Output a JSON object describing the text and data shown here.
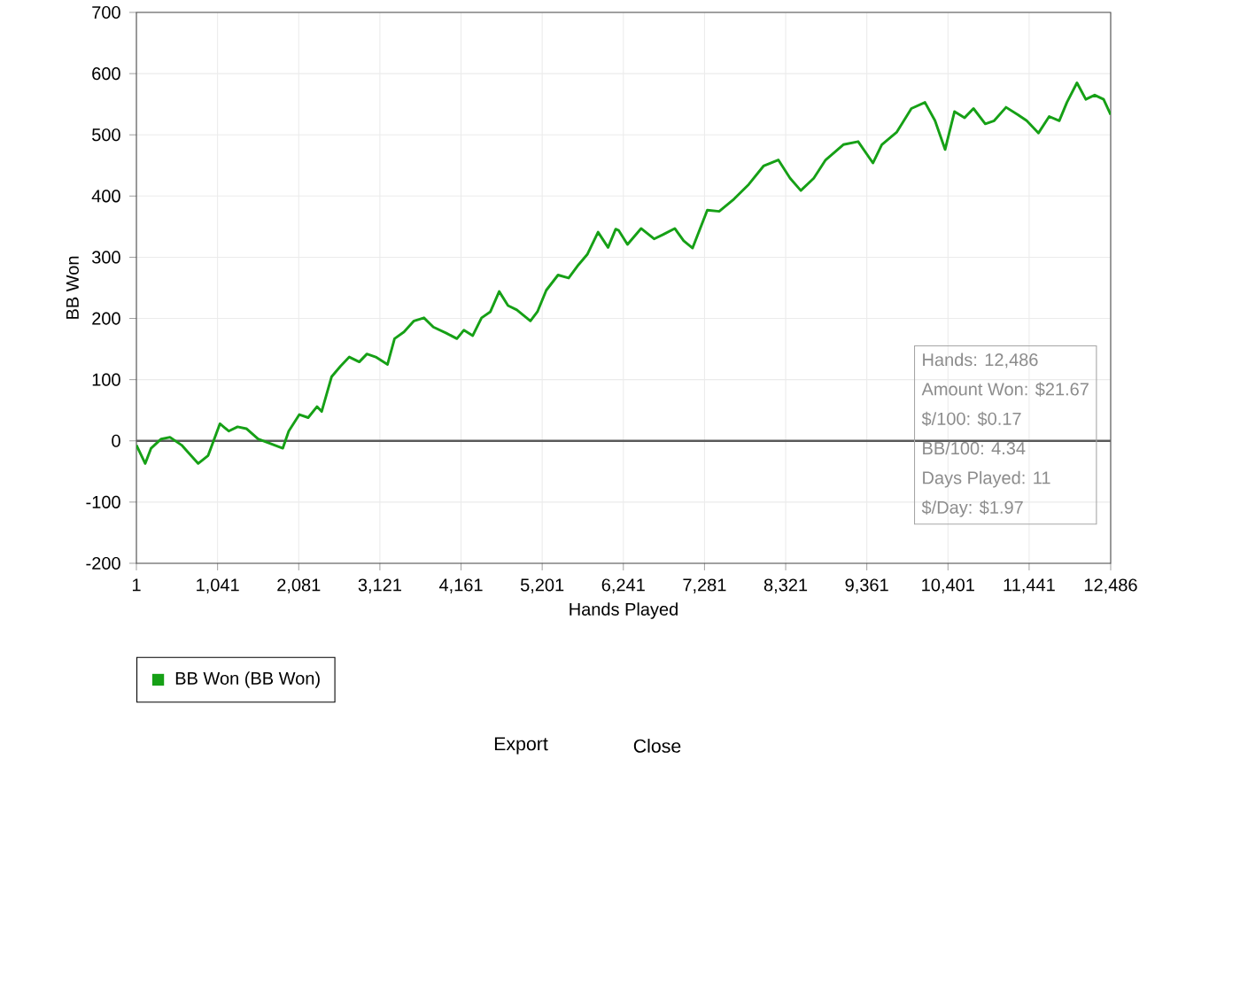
{
  "chart_data": {
    "type": "line",
    "xlabel": "Hands Played",
    "ylabel": "BB Won",
    "x": [
      1,
      114,
      189,
      318,
      431,
      581,
      792,
      920,
      1071,
      1184,
      1297,
      1410,
      1561,
      1712,
      1877,
      1953,
      2089,
      2202,
      2315,
      2375,
      2503,
      2616,
      2729,
      2857,
      2955,
      3068,
      3219,
      3309,
      3430,
      3558,
      3686,
      3806,
      3972,
      4108,
      4198,
      4311,
      4424,
      4537,
      4650,
      4763,
      4876,
      5050,
      5140,
      5253,
      5404,
      5540,
      5668,
      5781,
      5917,
      6045,
      6143,
      6180,
      6294,
      6468,
      6635,
      6749,
      6900,
      7014,
      7128,
      7317,
      7469,
      7658,
      7848,
      8037,
      8227,
      8378,
      8515,
      8681,
      8833,
      9060,
      9250,
      9439,
      9553,
      9742,
      9932,
      10106,
      10235,
      10364,
      10485,
      10614,
      10728,
      10879,
      10993,
      11145,
      11296,
      11410,
      11561,
      11698,
      11827,
      11925,
      12054,
      12167,
      12281,
      12395,
      12486
    ],
    "series": [
      {
        "name": "BB Won (BB Won)",
        "color": "#16a016",
        "values": [
          -7,
          -37,
          -12,
          3,
          6,
          -7,
          -37,
          -24,
          28,
          16,
          23,
          20,
          3,
          -4,
          -12,
          16,
          43,
          38,
          56,
          48,
          105,
          122,
          137,
          129,
          142,
          137,
          125,
          167,
          178,
          196,
          201,
          186,
          176,
          167,
          181,
          172,
          201,
          211,
          244,
          221,
          214,
          196,
          211,
          246,
          271,
          266,
          288,
          305,
          341,
          316,
          346,
          344,
          321,
          347,
          330,
          337,
          347,
          327,
          315,
          377,
          375,
          395,
          419,
          449,
          459,
          429,
          409,
          429,
          459,
          484,
          489,
          454,
          484,
          504,
          543,
          553,
          523,
          476,
          538,
          528,
          543,
          518,
          523,
          545,
          533,
          523,
          503,
          530,
          523,
          553,
          585,
          558,
          565,
          558,
          533
        ]
      }
    ],
    "xlim": [
      1,
      12486
    ],
    "xticks": [
      1,
      {
        "value": 1041,
        "label": "1,041"
      },
      {
        "value": 2081,
        "label": "2,081"
      },
      {
        "value": 3121,
        "label": "3,121"
      },
      {
        "value": 4161,
        "label": "4,161"
      },
      {
        "value": 5201,
        "label": "5,201"
      },
      {
        "value": 6241,
        "label": "6,241"
      },
      {
        "value": 7281,
        "label": "7,281"
      },
      {
        "value": 8321,
        "label": "8,321"
      },
      {
        "value": 9361,
        "label": "9,361"
      },
      {
        "value": 10401,
        "label": "10,401"
      },
      {
        "value": 11441,
        "label": "11,441"
      },
      {
        "value": 12486,
        "label": "12,486"
      }
    ],
    "ylim": [
      -200,
      700
    ],
    "yticks": [
      -200,
      -100,
      0,
      100,
      200,
      300,
      400,
      500,
      600,
      700
    ],
    "grid": true,
    "legend": "bottom left",
    "ref_lines": [
      {
        "axis": "y",
        "value": 0,
        "color": "#5a5a5a"
      }
    ],
    "annotations": [
      "Hands: 12,486",
      "Amount Won: $21.67",
      "$/100: $0.17",
      "BB/100: 4.34",
      "Days Played: 11",
      "$/Day: $1.97",
      "Export",
      "Close"
    ]
  }
}
